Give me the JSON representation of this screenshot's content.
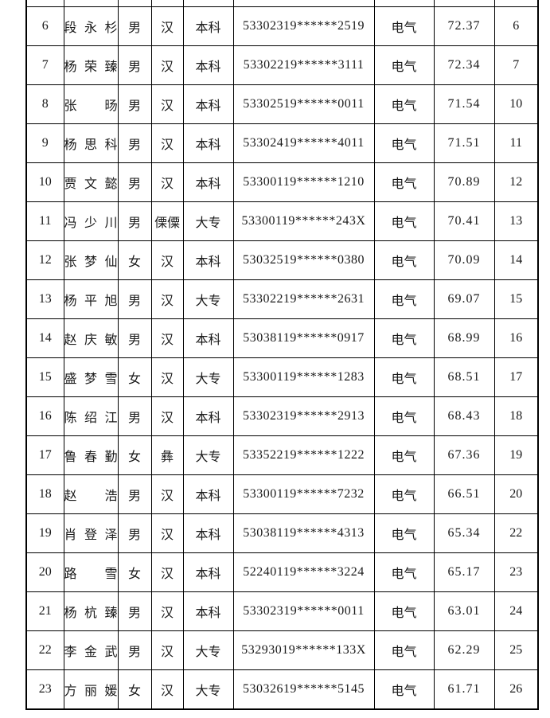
{
  "document": {
    "background_color": "#ffffff",
    "border_color": "#000000",
    "text_color": "#1a1a1a"
  },
  "table": {
    "column_keys": [
      "row-number",
      "name",
      "gender",
      "ethnicity",
      "education",
      "id-number",
      "position-category",
      "score",
      "rank"
    ],
    "rows": [
      [
        "6",
        "段永杉",
        "男",
        "汉",
        "本科",
        "53302319******2519",
        "电气",
        "72.37",
        "6"
      ],
      [
        "7",
        "杨荣臻",
        "男",
        "汉",
        "本科",
        "53302219******3111",
        "电气",
        "72.34",
        "7"
      ],
      [
        "8",
        "张旸",
        "男",
        "汉",
        "本科",
        "53302519******0011",
        "电气",
        "71.54",
        "10"
      ],
      [
        "9",
        "杨思科",
        "男",
        "汉",
        "本科",
        "53302419******4011",
        "电气",
        "71.51",
        "11"
      ],
      [
        "10",
        "贾文懿",
        "男",
        "汉",
        "本科",
        "53300119******1210",
        "电气",
        "70.89",
        "12"
      ],
      [
        "11",
        "冯少川",
        "男",
        "傈僳",
        "大专",
        "53300119******243X",
        "电气",
        "70.41",
        "13"
      ],
      [
        "12",
        "张梦仙",
        "女",
        "汉",
        "本科",
        "53032519******0380",
        "电气",
        "70.09",
        "14"
      ],
      [
        "13",
        "杨平旭",
        "男",
        "汉",
        "大专",
        "53302219******2631",
        "电气",
        "69.07",
        "15"
      ],
      [
        "14",
        "赵庆敏",
        "男",
        "汉",
        "本科",
        "53038119******0917",
        "电气",
        "68.99",
        "16"
      ],
      [
        "15",
        "盛梦雪",
        "女",
        "汉",
        "大专",
        "53300119******1283",
        "电气",
        "68.51",
        "17"
      ],
      [
        "16",
        "陈绍江",
        "男",
        "汉",
        "本科",
        "53302319******2913",
        "电气",
        "68.43",
        "18"
      ],
      [
        "17",
        "鲁春勤",
        "女",
        "彝",
        "大专",
        "53352219******1222",
        "电气",
        "67.36",
        "19"
      ],
      [
        "18",
        "赵浩",
        "男",
        "汉",
        "本科",
        "53300119******7232",
        "电气",
        "66.51",
        "20"
      ],
      [
        "19",
        "肖登泽",
        "男",
        "汉",
        "本科",
        "53038119******4313",
        "电气",
        "65.34",
        "22"
      ],
      [
        "20",
        "路雪",
        "女",
        "汉",
        "本科",
        "52240119******3224",
        "电气",
        "65.17",
        "23"
      ],
      [
        "21",
        "杨杭臻",
        "男",
        "汉",
        "本科",
        "53302319******0011",
        "电气",
        "63.01",
        "24"
      ],
      [
        "22",
        "李金武",
        "男",
        "汉",
        "大专",
        "53293019******133X",
        "电气",
        "62.29",
        "25"
      ],
      [
        "23",
        "方丽媛",
        "女",
        "汉",
        "大专",
        "53032619******5145",
        "电气",
        "61.71",
        "26"
      ]
    ]
  }
}
